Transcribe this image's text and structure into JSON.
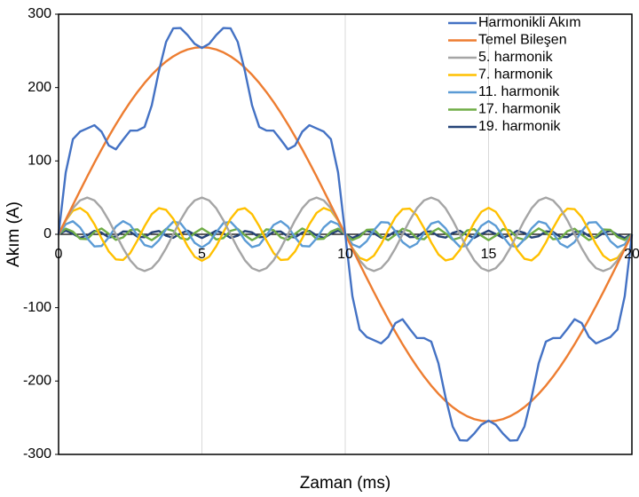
{
  "chart_data": {
    "type": "line",
    "xlabel": "Zaman (ms)",
    "ylabel": "Akım (A)",
    "xlim": [
      0,
      20
    ],
    "xticks": [
      0,
      5,
      10,
      15,
      20
    ],
    "ylim": [
      -300,
      300
    ],
    "yticks": [
      -300,
      -200,
      -100,
      0,
      100,
      200,
      300
    ],
    "grid": "x",
    "legend": "upper right",
    "x": [
      0,
      0.25,
      0.5,
      0.75,
      1,
      1.25,
      1.5,
      1.75,
      2,
      2.25,
      2.5,
      2.75,
      3,
      3.25,
      3.5,
      3.75,
      4,
      4.25,
      4.5,
      4.75,
      5,
      5.25,
      5.5,
      5.75,
      6,
      6.25,
      6.5,
      6.75,
      7,
      7.25,
      7.5,
      7.75,
      8,
      8.25,
      8.5,
      8.75,
      9,
      9.25,
      9.5,
      9.75,
      10,
      10.25,
      10.5,
      10.75,
      11,
      11.25,
      11.5,
      11.75,
      12,
      12.25,
      12.5,
      12.75,
      13,
      13.25,
      13.5,
      13.75,
      14,
      14.25,
      14.5,
      14.75,
      15,
      15.25,
      15.5,
      15.75,
      16,
      16.25,
      16.5,
      16.75,
      17,
      17.25,
      17.5,
      17.75,
      18,
      18.25,
      18.5,
      18.75,
      19,
      19.25,
      19.5,
      19.75,
      20
    ],
    "series": [
      {
        "name": "Harmonikli Akım",
        "color": "#4472c4",
        "values": [
          0,
          84.4,
          129.6,
          140,
          144.3,
          148.7,
          139.8,
          121,
          115.8,
          129,
          141.3,
          141.5,
          146.3,
          175.7,
          222.4,
          262.2,
          280.7,
          281.2,
          271.6,
          259.5,
          254,
          259.5,
          271.6,
          281.2,
          280.7,
          262.2,
          222.4,
          175.7,
          146.3,
          141.5,
          141.3,
          129,
          115.8,
          121,
          139.8,
          148.7,
          144.3,
          140,
          129.6,
          84.4,
          0,
          -84.4,
          -129.6,
          -140,
          -144.3,
          -148.7,
          -139.8,
          -121,
          -115.8,
          -129,
          -141.3,
          -141.5,
          -146.3,
          -175.7,
          -222.4,
          -262.2,
          -280.7,
          -281.2,
          -271.6,
          -259.5,
          -254,
          -259.5,
          -271.6,
          -281.2,
          -280.7,
          -262.2,
          -222.4,
          -175.7,
          -146.3,
          -141.5,
          -141.3,
          -129,
          -115.8,
          -121,
          -139.8,
          -148.7,
          -144.3,
          -140,
          -129.6,
          -84.4,
          0
        ]
      },
      {
        "name": "Temel Bileşen",
        "color": "#ed7d31",
        "values": [
          0,
          20,
          39.9,
          59.5,
          78.8,
          97.6,
          115.8,
          133.2,
          149.9,
          165.6,
          180.3,
          193.9,
          206.3,
          217.4,
          227.2,
          235.6,
          242.5,
          248,
          251.9,
          254.2,
          255,
          254.2,
          251.9,
          248,
          242.5,
          235.6,
          227.2,
          217.4,
          206.3,
          193.9,
          180.3,
          165.6,
          149.9,
          133.2,
          115.8,
          97.6,
          78.8,
          59.5,
          39.9,
          20,
          0,
          -20,
          -39.9,
          -59.5,
          -78.8,
          -97.6,
          -115.8,
          -133.2,
          -149.9,
          -165.6,
          -180.3,
          -193.9,
          -206.3,
          -217.4,
          -227.2,
          -235.6,
          -242.5,
          -248,
          -251.9,
          -254.2,
          -255,
          -254.2,
          -251.9,
          -248,
          -242.5,
          -235.6,
          -227.2,
          -217.4,
          -206.3,
          -193.9,
          -180.3,
          -165.6,
          -149.9,
          -133.2,
          -115.8,
          -97.6,
          -78.8,
          -59.5,
          -39.9,
          -20,
          0
        ]
      },
      {
        "name": "5. harmonik",
        "color": "#a5a5a5",
        "values": [
          0,
          19.1,
          35.4,
          46.2,
          50,
          46.2,
          35.4,
          19.1,
          0,
          -19.1,
          -35.4,
          -46.2,
          -50,
          -46.2,
          -35.4,
          -19.1,
          0,
          19.1,
          35.4,
          46.2,
          50,
          46.2,
          35.4,
          19.1,
          0,
          -19.1,
          -35.4,
          -46.2,
          -50,
          -46.2,
          -35.4,
          -19.1,
          0,
          19.1,
          35.4,
          46.2,
          50,
          46.2,
          35.4,
          19.1,
          0,
          -19.1,
          -35.4,
          -46.2,
          -50,
          -46.2,
          -35.4,
          -19.1,
          0,
          19.1,
          35.4,
          46.2,
          50,
          46.2,
          35.4,
          19.1,
          0,
          -19.1,
          -35.4,
          -46.2,
          -50,
          -46.2,
          -35.4,
          -19.1,
          0,
          19.1,
          35.4,
          46.2,
          50,
          46.2,
          35.4,
          19.1,
          0,
          -19.1,
          -35.4,
          -46.2,
          -50,
          -46.2,
          -35.4,
          -19.1,
          0
        ]
      },
      {
        "name": "7. harmonik",
        "color": "#ffc000",
        "values": [
          0,
          18.8,
          32.1,
          35.9,
          29.1,
          13.8,
          -5.6,
          -23.4,
          -34.2,
          -35,
          -25.5,
          -8.4,
          11.1,
          27.4,
          35.6,
          33.3,
          21.2,
          2.8,
          -16.3,
          -30.7,
          -36,
          -30.7,
          -16.3,
          2.8,
          21.2,
          33.3,
          35.6,
          27.4,
          11.1,
          -8.4,
          -25.5,
          -35,
          -34.2,
          -23.4,
          -5.6,
          13.8,
          29.1,
          35.9,
          32.1,
          18.8,
          0,
          -18.8,
          -32.1,
          -35.9,
          -29.1,
          -13.8,
          5.6,
          23.4,
          34.2,
          35,
          25.5,
          8.4,
          -11.1,
          -27.4,
          -35.6,
          -33.3,
          -21.2,
          -2.8,
          16.3,
          30.7,
          36,
          30.7,
          16.3,
          -2.8,
          -21.2,
          -33.3,
          -35.6,
          -27.4,
          -11.1,
          8.4,
          25.5,
          35,
          34.2,
          23.4,
          5.6,
          -13.8,
          -29.1,
          -35.9,
          -32.1,
          -18.8,
          0
        ]
      },
      {
        "name": "11. harmonik",
        "color": "#5b9bd5",
        "values": [
          0,
          13.7,
          17.8,
          9.4,
          -5.6,
          -16.6,
          -16,
          -4.2,
          10.6,
          17.9,
          12.7,
          -1.4,
          -14.6,
          -17.5,
          -8.2,
          6.9,
          17.1,
          15.3,
          2.8,
          -11.7,
          -18,
          -11.7,
          2.8,
          15.3,
          17.1,
          6.9,
          -8.2,
          -17.5,
          -14.6,
          -1.4,
          12.7,
          17.9,
          10.6,
          -4.2,
          -16,
          -16.6,
          -5.6,
          9.4,
          17.8,
          13.7,
          0,
          -13.7,
          -17.8,
          -9.4,
          5.6,
          16.6,
          16,
          4.2,
          -10.6,
          -17.9,
          -12.7,
          1.4,
          14.6,
          17.5,
          8.2,
          -6.9,
          -17.1,
          -15.3,
          -2.8,
          11.7,
          18,
          11.7,
          -2.8,
          -15.3,
          -17.1,
          -6.9,
          8.2,
          17.5,
          14.6,
          1.4,
          -12.7,
          -17.9,
          -10.6,
          4.2,
          16,
          16.6,
          5.6,
          -9.4,
          -17.8,
          -13.7,
          0
        ]
      },
      {
        "name": "17. harmonik",
        "color": "#70ad47",
        "values": [
          0,
          7.8,
          3.6,
          -6.1,
          -6.5,
          3.1,
          7.9,
          0.6,
          -7.6,
          -4.2,
          5.7,
          6.8,
          -2.5,
          -8,
          -1.3,
          7.4,
          4.7,
          -5.2,
          -7.1,
          1.9,
          8,
          1.9,
          -7.1,
          -5.2,
          4.7,
          7.4,
          -1.3,
          -8,
          -2.5,
          6.8,
          5.7,
          -4.2,
          -7.6,
          0.6,
          7.9,
          3.1,
          -6.5,
          -6.1,
          3.6,
          7.8,
          0,
          -7.8,
          -3.6,
          6.1,
          6.5,
          -3.1,
          -7.9,
          -0.6,
          7.6,
          4.2,
          -5.7,
          -6.8,
          2.5,
          8,
          1.3,
          -7.4,
          -4.7,
          5.2,
          7.1,
          -1.9,
          -8,
          -1.9,
          7.1,
          5.2,
          -4.7,
          -7.4,
          1.3,
          8,
          2.5,
          -6.8,
          -5.7,
          4.2,
          7.6,
          -0.6,
          -7.9,
          -3.1,
          6.5,
          6.1,
          -3.6,
          -7.8,
          0
        ]
      },
      {
        "name": "19. harmonik",
        "color": "#264478",
        "values": [
          0,
          5,
          0.8,
          -4.9,
          -1.5,
          4.6,
          2.3,
          -4.3,
          -2.9,
          3.8,
          3.5,
          -3.2,
          -4,
          2.6,
          4.5,
          -1.9,
          -4.8,
          1.2,
          4.9,
          -0.4,
          -5,
          -0.4,
          4.9,
          1.2,
          -4.8,
          -1.9,
          4.5,
          2.6,
          -4,
          -3.2,
          3.5,
          3.8,
          -2.9,
          -4.3,
          2.3,
          4.6,
          -1.5,
          -4.9,
          0.8,
          5,
          0,
          -5,
          -0.8,
          4.9,
          1.5,
          -4.6,
          -2.3,
          4.3,
          2.9,
          -3.8,
          -3.5,
          3.2,
          4,
          -2.6,
          -4.5,
          1.9,
          4.8,
          -1.2,
          -4.9,
          0.4,
          5,
          0.4,
          -4.9,
          -1.2,
          4.8,
          1.9,
          -4.5,
          -2.6,
          4,
          3.2,
          -3.5,
          -3.8,
          2.9,
          4.3,
          -2.3,
          -4.6,
          1.5,
          4.9,
          -0.8,
          -5,
          0
        ]
      }
    ]
  }
}
